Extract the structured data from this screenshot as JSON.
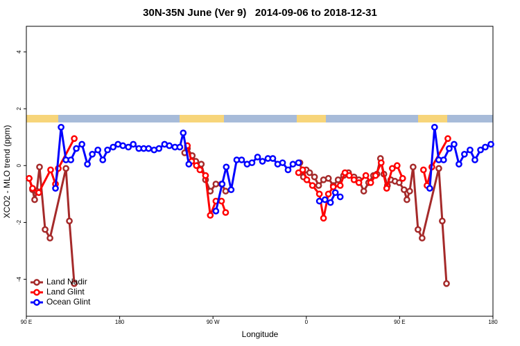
{
  "chart_data": {
    "type": "line",
    "title": "30N-35N June (Ver 9)   2014-09-06 to 2018-12-31",
    "x_label": "Longitude",
    "y_label": "XCO2 - MLO trend (ppm)",
    "xlim": [
      90,
      540
    ],
    "ylim": [
      -5.3,
      4.9
    ],
    "xticks": [
      {
        "value": 90,
        "label": "90 E"
      },
      180,
      {
        "value": 270,
        "label": "90 W"
      },
      {
        "value": 360,
        "label": "0"
      },
      {
        "value": 450,
        "label": "90 E"
      },
      {
        "value": 540,
        "label": "180"
      }
    ],
    "yticks": [
      -4,
      -2,
      0,
      2,
      4
    ],
    "legend": "bottom-left",
    "series": [
      {
        "name": "Land Nadir",
        "color": "#a52a2a",
        "x": [
          92.7,
          96,
          98,
          100,
          102.7,
          108.1,
          112.8,
          128.2,
          131.5,
          136.2,
          null,
          242.7,
          245.3,
          250,
          253.4,
          258.7,
          262.8,
          267.4,
          272.8,
          278.2,
          282.2,
          null,
          353.8,
          357.2,
          359.9,
          363.2,
          367.9,
          371.9,
          376.6,
          381.3,
          386,
          390.7,
          396,
          400.7,
          406,
          410.7,
          415.4,
          420.1,
          424.8,
          428.1,
          431.5,
          434.8,
          438.2,
          441.5,
          445.5,
          449.6,
          454.3,
          457,
          459.7,
          463,
          467.7,
          471.7,
          487.8,
          491.1,
          495.2
        ],
        "values": [
          -0.45,
          -0.85,
          -1.2,
          -0.9,
          -0.05,
          -2.25,
          -2.55,
          -0.1,
          -1.95,
          -4.15,
          null,
          0.45,
          0.6,
          0.35,
          0.15,
          0.05,
          -0.5,
          -0.9,
          -0.65,
          -0.65,
          -0.9,
          null,
          0.1,
          -0.4,
          -0.15,
          -0.25,
          -0.4,
          -0.7,
          -0.5,
          -0.45,
          -0.7,
          -0.5,
          -0.35,
          -0.25,
          -0.4,
          -0.5,
          -0.9,
          -0.6,
          -0.35,
          -0.3,
          0.25,
          -0.3,
          -0.7,
          -0.5,
          -0.55,
          -0.6,
          -0.85,
          -1.2,
          -0.9,
          -0.05,
          -2.25,
          -2.55,
          -0.1,
          -1.95,
          -4.15
        ]
      },
      {
        "name": "Land Glint",
        "color": "#ff0000",
        "x": [
          92.7,
          96,
          102,
          113.4,
          118.1,
          120.8,
          136.2,
          null,
          245.3,
          249.4,
          254,
          257.4,
          262.8,
          267.4,
          272.8,
          278.2,
          282.2,
          null,
          352.5,
          356.5,
          360.5,
          365.9,
          372.6,
          376.6,
          381.3,
          386,
          392.7,
          397.3,
          401.4,
          406,
          410.7,
          417.4,
          422.1,
          426.8,
          432.2,
          437.5,
          442.9,
          447.6,
          452.9,
          null,
          473,
          476.4,
          481.1,
          496.5
        ],
        "values": [
          -0.45,
          -0.8,
          -0.95,
          -0.15,
          -0.65,
          -0.1,
          0.95,
          null,
          0.7,
          0.15,
          0,
          -0.15,
          -0.35,
          -1.75,
          -1.25,
          -1.25,
          -1.65,
          null,
          -0.25,
          -0.15,
          -0.5,
          -0.7,
          -1.0,
          -1.85,
          -1.0,
          -0.75,
          -0.7,
          -0.25,
          -0.35,
          -0.5,
          -0.6,
          -0.35,
          -0.6,
          -0.35,
          0.1,
          -0.8,
          -0.1,
          0.0,
          -0.45,
          null,
          -0.15,
          -0.7,
          -0.05,
          0.95
        ]
      },
      {
        "name": "Ocean Glint",
        "color": "#0000ff",
        "x": [
          118.1,
          123.5,
          128.2,
          132.9,
          138.2,
          143.6,
          148.9,
          153.6,
          159,
          163.7,
          168.3,
          173.7,
          178.4,
          183.1,
          188.4,
          193.1,
          198.5,
          203.2,
          207.9,
          213.2,
          217.9,
          223.3,
          227.9,
          233.3,
          238,
          241.3,
          246.7,
          null,
          272.8,
          278.8,
          282.8,
          287.5,
          292.9,
          297.6,
          302.9,
          307.6,
          313,
          317.7,
          323,
          327.7,
          332.4,
          337.1,
          342.4,
          347.1,
          352.5,
          null,
          372.6,
          378,
          383.3,
          388,
          392.7,
          null,
          479,
          483.7,
          487.7,
          492.4,
          497.8,
          502.5,
          507.2,
          512.5,
          517.9,
          522.6,
          528,
          532.6,
          538
        ],
        "values": [
          -0.8,
          1.35,
          0.2,
          0.2,
          0.6,
          0.75,
          0.05,
          0.4,
          0.55,
          0.2,
          0.55,
          0.65,
          0.75,
          0.7,
          0.65,
          0.75,
          0.6,
          0.6,
          0.6,
          0.55,
          0.6,
          0.75,
          0.7,
          0.65,
          0.65,
          1.15,
          0.05,
          null,
          -1.6,
          -0.65,
          -0.05,
          -0.85,
          0.2,
          0.2,
          0.05,
          0.1,
          0.3,
          0.15,
          0.25,
          0.25,
          0.05,
          0.1,
          -0.15,
          0.05,
          0.1,
          null,
          -1.25,
          -1.2,
          -1.3,
          -0.95,
          -1.1,
          null,
          -0.8,
          1.35,
          0.2,
          0.2,
          0.6,
          0.75,
          0.05,
          0.4,
          0.55,
          0.2,
          0.55,
          0.65,
          0.75
        ]
      }
    ]
  }
}
